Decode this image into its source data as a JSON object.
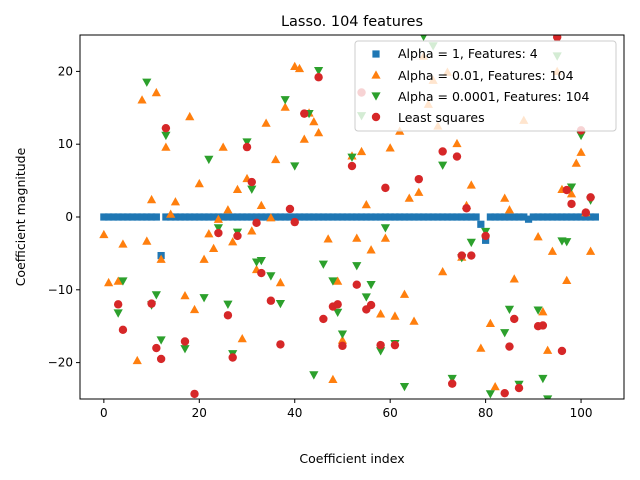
{
  "chart_data": {
    "type": "scatter",
    "title": "Lasso. 104 features",
    "xlabel": "Coefficient index",
    "ylabel": "Coefficient magnitude",
    "xlim": [
      -5,
      109
    ],
    "ylim": [
      -25,
      25
    ],
    "x_ticks": [
      0,
      20,
      40,
      60,
      80,
      100
    ],
    "y_ticks": [
      -20,
      -10,
      0,
      10,
      20
    ],
    "grid": false,
    "legend_position": "top-right",
    "series": [
      {
        "name": "Alpha = 1, Features: 4",
        "marker": "square",
        "color": "#1f77b4",
        "points": [
          [
            0,
            0
          ],
          [
            1,
            0
          ],
          [
            2,
            0
          ],
          [
            3,
            0
          ],
          [
            4,
            0
          ],
          [
            5,
            0
          ],
          [
            6,
            0
          ],
          [
            7,
            0
          ],
          [
            8,
            0
          ],
          [
            9,
            0
          ],
          [
            10,
            0
          ],
          [
            11,
            0
          ],
          [
            12,
            -5.3
          ],
          [
            13,
            0
          ],
          [
            14,
            0
          ],
          [
            15,
            0
          ],
          [
            16,
            0
          ],
          [
            17,
            0
          ],
          [
            18,
            0
          ],
          [
            19,
            0
          ],
          [
            20,
            0
          ],
          [
            21,
            0
          ],
          [
            22,
            0
          ],
          [
            23,
            0
          ],
          [
            24,
            0
          ],
          [
            25,
            0
          ],
          [
            26,
            0
          ],
          [
            27,
            0
          ],
          [
            28,
            0
          ],
          [
            29,
            0
          ],
          [
            30,
            0
          ],
          [
            31,
            0
          ],
          [
            32,
            0
          ],
          [
            33,
            0
          ],
          [
            34,
            0
          ],
          [
            35,
            0
          ],
          [
            36,
            0
          ],
          [
            37,
            0
          ],
          [
            38,
            0
          ],
          [
            39,
            0
          ],
          [
            40,
            0
          ],
          [
            41,
            0
          ],
          [
            42,
            0
          ],
          [
            43,
            0
          ],
          [
            44,
            0
          ],
          [
            45,
            0
          ],
          [
            46,
            0
          ],
          [
            47,
            0
          ],
          [
            48,
            0
          ],
          [
            49,
            0
          ],
          [
            50,
            0
          ],
          [
            51,
            0
          ],
          [
            52,
            0
          ],
          [
            53,
            0
          ],
          [
            54,
            0
          ],
          [
            55,
            0
          ],
          [
            56,
            0
          ],
          [
            57,
            0
          ],
          [
            58,
            0
          ],
          [
            59,
            0
          ],
          [
            60,
            0
          ],
          [
            61,
            0
          ],
          [
            62,
            0
          ],
          [
            63,
            0
          ],
          [
            64,
            0
          ],
          [
            65,
            0
          ],
          [
            66,
            0
          ],
          [
            67,
            0
          ],
          [
            68,
            0
          ],
          [
            69,
            0
          ],
          [
            70,
            0
          ],
          [
            71,
            0
          ],
          [
            72,
            0
          ],
          [
            73,
            0
          ],
          [
            74,
            0
          ],
          [
            75,
            0
          ],
          [
            76,
            0
          ],
          [
            77,
            0
          ],
          [
            78,
            0
          ],
          [
            79,
            -1.0
          ],
          [
            80,
            -3.2
          ],
          [
            81,
            0
          ],
          [
            82,
            0
          ],
          [
            83,
            0
          ],
          [
            84,
            0
          ],
          [
            85,
            0
          ],
          [
            86,
            0
          ],
          [
            87,
            0
          ],
          [
            88,
            0
          ],
          [
            89,
            -0.3
          ],
          [
            90,
            0
          ],
          [
            91,
            0
          ],
          [
            92,
            0
          ],
          [
            93,
            0
          ],
          [
            94,
            0
          ],
          [
            95,
            0
          ],
          [
            96,
            0
          ],
          [
            97,
            0
          ],
          [
            98,
            0
          ],
          [
            99,
            0
          ],
          [
            100,
            0
          ],
          [
            101,
            0
          ],
          [
            102,
            0
          ],
          [
            103,
            0
          ]
        ]
      },
      {
        "name": "Alpha = 0.01, Features: 104",
        "marker": "triangle-up",
        "color": "#ff7f0e",
        "points": [
          [
            0,
            -2.4
          ],
          [
            1,
            -9.0
          ],
          [
            3,
            -8.8
          ],
          [
            4,
            -3.7
          ],
          [
            7,
            -19.7
          ],
          [
            8,
            16.1
          ],
          [
            9,
            -3.3
          ],
          [
            10,
            2.4
          ],
          [
            11,
            17.1
          ],
          [
            12,
            -5.8
          ],
          [
            13,
            9.6
          ],
          [
            14,
            0.4
          ],
          [
            15,
            2.1
          ],
          [
            17,
            -10.8
          ],
          [
            18,
            13.8
          ],
          [
            19,
            -12.7
          ],
          [
            20,
            4.6
          ],
          [
            21,
            -5.8
          ],
          [
            22,
            -2.3
          ],
          [
            23,
            -4.3
          ],
          [
            24,
            -0.3
          ],
          [
            25,
            9.6
          ],
          [
            26,
            1.0
          ],
          [
            27,
            -3.4
          ],
          [
            28,
            3.8
          ],
          [
            29,
            -16.7
          ],
          [
            30,
            5.3
          ],
          [
            31,
            -1.9
          ],
          [
            32,
            -7.2
          ],
          [
            33,
            1.6
          ],
          [
            34,
            12.9
          ],
          [
            35,
            -0.1
          ],
          [
            36,
            7.9
          ],
          [
            37,
            -9.0
          ],
          [
            38,
            15.1
          ],
          [
            40,
            20.7
          ],
          [
            41,
            20.4
          ],
          [
            42,
            10.7
          ],
          [
            43,
            14.3
          ],
          [
            44,
            13.1
          ],
          [
            45,
            11.6
          ],
          [
            47,
            -3.0
          ],
          [
            48,
            -22.3
          ],
          [
            49,
            -8.8
          ],
          [
            50,
            -16.9
          ],
          [
            52,
            8.4
          ],
          [
            53,
            -2.9
          ],
          [
            54,
            9.0
          ],
          [
            55,
            1.7
          ],
          [
            56,
            -4.5
          ],
          [
            58,
            -13.3
          ],
          [
            59,
            -2.9
          ],
          [
            60,
            9.5
          ],
          [
            61,
            -13.6
          ],
          [
            62,
            11.8
          ],
          [
            63,
            -10.6
          ],
          [
            64,
            2.6
          ],
          [
            65,
            -14.3
          ],
          [
            66,
            3.4
          ],
          [
            67,
            22.1
          ],
          [
            68,
            15.5
          ],
          [
            69,
            18.8
          ],
          [
            70,
            12.5
          ],
          [
            71,
            -7.5
          ],
          [
            72,
            19.9
          ],
          [
            74,
            10.1
          ],
          [
            75,
            -5.5
          ],
          [
            76,
            1.6
          ],
          [
            77,
            4.4
          ],
          [
            79,
            -18.0
          ],
          [
            81,
            -14.6
          ],
          [
            82,
            -23.3
          ],
          [
            84,
            2.6
          ],
          [
            85,
            1.0
          ],
          [
            86,
            -8.5
          ],
          [
            88,
            13.3
          ],
          [
            91,
            -2.7
          ],
          [
            92,
            -13.0
          ],
          [
            93,
            -18.3
          ],
          [
            94,
            -4.7
          ],
          [
            95,
            20.0
          ],
          [
            96,
            3.8
          ],
          [
            97,
            -8.7
          ],
          [
            98,
            3.2
          ],
          [
            99,
            7.4
          ],
          [
            100,
            8.9
          ],
          [
            101,
            0.6
          ],
          [
            102,
            -4.7
          ]
        ]
      },
      {
        "name": "Alpha = 0.0001, Features: 104",
        "marker": "triangle-down",
        "color": "#2ca02c",
        "points": [
          [
            3,
            -13.2
          ],
          [
            4,
            -8.8
          ],
          [
            9,
            18.5
          ],
          [
            10,
            -12.1
          ],
          [
            11,
            -10.7
          ],
          [
            12,
            -16.9
          ],
          [
            13,
            11.2
          ],
          [
            17,
            -18.1
          ],
          [
            22,
            7.9
          ],
          [
            21,
            -11.1
          ],
          [
            24,
            -1.5
          ],
          [
            26,
            -12.0
          ],
          [
            27,
            -18.8
          ],
          [
            28,
            -2.1
          ],
          [
            30,
            10.3
          ],
          [
            31,
            3.8
          ],
          [
            32,
            -6.2
          ],
          [
            33,
            -6.0
          ],
          [
            35,
            -8.1
          ],
          [
            37,
            -11.9
          ],
          [
            38,
            16.1
          ],
          [
            40,
            7.0
          ],
          [
            43,
            14.2
          ],
          [
            44,
            -21.7
          ],
          [
            45,
            20.1
          ],
          [
            46,
            -6.5
          ],
          [
            48,
            -8.8
          ],
          [
            49,
            -13.1
          ],
          [
            50,
            -16.1
          ],
          [
            52,
            8.2
          ],
          [
            53,
            -6.7
          ],
          [
            54,
            13.9
          ],
          [
            55,
            -11.0
          ],
          [
            56,
            -9.3
          ],
          [
            58,
            -18.4
          ],
          [
            59,
            -1.5
          ],
          [
            61,
            -17.4
          ],
          [
            63,
            -23.3
          ],
          [
            67,
            24.8
          ],
          [
            69,
            23.5
          ],
          [
            71,
            7.1
          ],
          [
            73,
            -22.2
          ],
          [
            75,
            -5.6
          ],
          [
            77,
            -3.5
          ],
          [
            80,
            -2.0
          ],
          [
            81,
            -24.3
          ],
          [
            84,
            -15.9
          ],
          [
            85,
            -12.7
          ],
          [
            87,
            -23.0
          ],
          [
            91,
            -12.8
          ],
          [
            92,
            -22.2
          ],
          [
            93,
            -25.0
          ],
          [
            95,
            22.1
          ],
          [
            96,
            -3.3
          ],
          [
            97,
            -3.4
          ],
          [
            98,
            4.1
          ],
          [
            100,
            11.2
          ],
          [
            102,
            2.3
          ]
        ]
      },
      {
        "name": "Least squares",
        "marker": "circle",
        "color": "#d62728",
        "points": [
          [
            3,
            -12.0
          ],
          [
            4,
            -15.5
          ],
          [
            10,
            -11.9
          ],
          [
            11,
            -18.0
          ],
          [
            12,
            -19.5
          ],
          [
            13,
            12.2
          ],
          [
            17,
            -17.1
          ],
          [
            19,
            -24.3
          ],
          [
            24,
            -2.2
          ],
          [
            26,
            -13.5
          ],
          [
            27,
            -19.3
          ],
          [
            28,
            -2.6
          ],
          [
            30,
            9.6
          ],
          [
            31,
            4.8
          ],
          [
            32,
            -0.8
          ],
          [
            33,
            -7.7
          ],
          [
            35,
            -11.5
          ],
          [
            37,
            -17.5
          ],
          [
            39,
            1.1
          ],
          [
            40,
            -0.7
          ],
          [
            42,
            14.2
          ],
          [
            45,
            19.2
          ],
          [
            46,
            -14.0
          ],
          [
            48,
            -12.3
          ],
          [
            49,
            -12.0
          ],
          [
            50,
            -17.7
          ],
          [
            52,
            7.0
          ],
          [
            53,
            -9.3
          ],
          [
            54,
            17.1
          ],
          [
            55,
            -12.7
          ],
          [
            56,
            -12.1
          ],
          [
            58,
            -17.6
          ],
          [
            59,
            4.0
          ],
          [
            61,
            -17.6
          ],
          [
            66,
            5.2
          ],
          [
            71,
            9.0
          ],
          [
            73,
            -22.9
          ],
          [
            74,
            8.3
          ],
          [
            75,
            -5.3
          ],
          [
            76,
            1.2
          ],
          [
            77,
            -5.3
          ],
          [
            80,
            -2.6
          ],
          [
            84,
            -24.2
          ],
          [
            85,
            -17.8
          ],
          [
            86,
            -14.0
          ],
          [
            87,
            -23.5
          ],
          [
            91,
            -15.0
          ],
          [
            92,
            -14.9
          ],
          [
            95,
            24.7
          ],
          [
            96,
            -18.4
          ],
          [
            97,
            3.7
          ],
          [
            98,
            1.8
          ],
          [
            100,
            11.9
          ],
          [
            101,
            0.6
          ],
          [
            102,
            2.7
          ]
        ]
      }
    ]
  }
}
